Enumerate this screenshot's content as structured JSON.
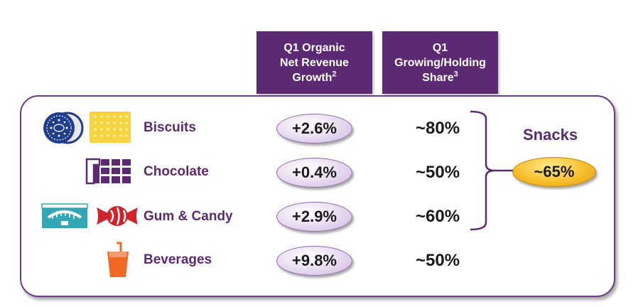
{
  "headers": {
    "growth": {
      "line1": "Q1 Organic",
      "line2": "Net Revenue",
      "line3": "Growth",
      "sup": "2"
    },
    "share": {
      "line1": "Q1",
      "line2": "Growing/Holding",
      "line3": "Share",
      "sup": "3"
    }
  },
  "rows": [
    {
      "category": "Biscuits",
      "growth": "+2.6%",
      "share": "~80%",
      "icons": [
        "cookie-icon",
        "cracker-icon"
      ]
    },
    {
      "category": "Chocolate",
      "growth": "+0.4%",
      "share": "~50%",
      "icons": [
        "chocolate-bar-icon"
      ]
    },
    {
      "category": "Gum & Candy",
      "growth": "+2.9%",
      "share": "~60%",
      "icons": [
        "gum-pack-icon",
        "wrapped-candy-icon"
      ]
    },
    {
      "category": "Beverages",
      "growth": "+9.8%",
      "share": "~50%",
      "icons": [
        "drink-cup-icon"
      ]
    }
  ],
  "snacks": {
    "label": "Snacks",
    "value": "~65%"
  },
  "colors": {
    "purple": "#5b2a73",
    "navy": "#1f3d8c",
    "yellow": "#f6d341",
    "teal": "#31a7b5",
    "red": "#d1232a",
    "orange": "#f26722",
    "gold": "#f4b323"
  }
}
